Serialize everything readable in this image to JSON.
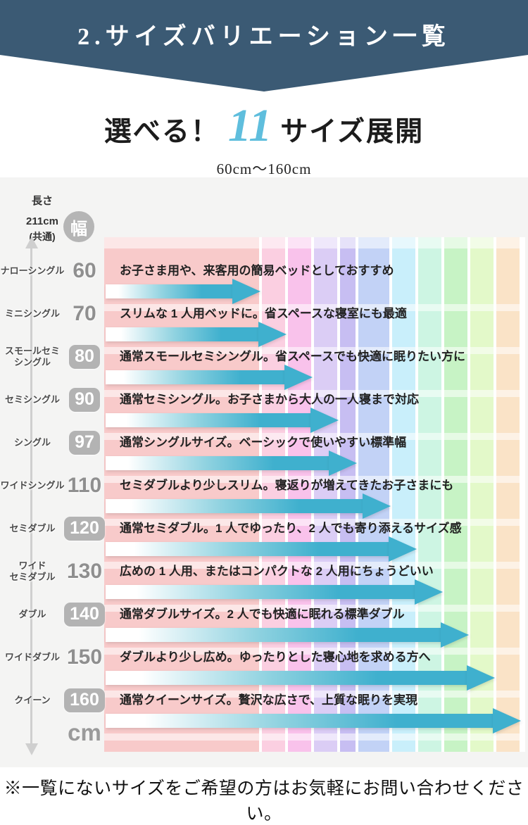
{
  "banner": {
    "title": "2.サイズバリエーション一覧"
  },
  "heading": {
    "prefix": "選べる！",
    "count": "11",
    "suffix": "サイズ展開",
    "range": "60cm〜160cm"
  },
  "axis": {
    "length_label": "長さ",
    "length_value": "211",
    "length_unit": "cm",
    "length_note": "(共通)",
    "width_label": "幅",
    "width_unit_label": "cm"
  },
  "footer": {
    "note": "※一覧にないサイズをご希望の方はお気軽にお問い合わせください。"
  },
  "colors": {
    "banner_bg": "#3b5a74",
    "count_accent": "#5fbedd",
    "arrow_teal": "#3fb0ce",
    "arrow_gradient_mid": "#8fd2e0",
    "badge_gray": "#b5b5b5",
    "section_bg": "#f4f4f3"
  },
  "chart_data": {
    "type": "bar",
    "orientation": "horizontal",
    "title": "サイズバリエーション一覧（幅 60cm〜160cm、長さ211cm共通）",
    "x_unit": "cm",
    "xlim": [
      0,
      160
    ],
    "length_common_cm": 211,
    "boundaries_cm": [
      0,
      60,
      70,
      80,
      90,
      97,
      110,
      120,
      130,
      140,
      150,
      160
    ],
    "band_colors": [
      "#f8caca",
      "#fbcfe1",
      "#f9c2eb",
      "#dbcdf5",
      "#c7bef2",
      "#c2d2f6",
      "#c9effb",
      "#cdf5e3",
      "#c7f3c5",
      "#e3f9c9",
      "#fae3c7"
    ],
    "rows": [
      {
        "name": "ナローシングル",
        "name_lines": [
          "ナローシングル"
        ],
        "width_cm": 60,
        "boxed": false,
        "desc": "お子さま用や、来客用の簡易ベッドとしておすすめ"
      },
      {
        "name": "ミニシングル",
        "name_lines": [
          "ミニシングル"
        ],
        "width_cm": 70,
        "boxed": false,
        "desc": "スリムな 1 人用ベッドに。省スペースな寝室にも最適"
      },
      {
        "name": "スモールセミシングル",
        "name_lines": [
          "スモールセミ",
          "シングル"
        ],
        "width_cm": 80,
        "boxed": true,
        "desc": "通常スモールセミシングル。省スペースでも快適に眠りたい方に"
      },
      {
        "name": "セミシングル",
        "name_lines": [
          "セミシングル"
        ],
        "width_cm": 90,
        "boxed": true,
        "desc": "通常セミシングル。お子さまから大人の一人寝まで対応"
      },
      {
        "name": "シングル",
        "name_lines": [
          "シングル"
        ],
        "width_cm": 97,
        "boxed": true,
        "desc": "通常シングルサイズ。ベーシックで使いやすい標準幅"
      },
      {
        "name": "ワイドシングル",
        "name_lines": [
          "ワイドシングル"
        ],
        "width_cm": 110,
        "boxed": false,
        "desc": "セミダブルより少しスリム。寝返りが増えてきたお子さまにも"
      },
      {
        "name": "セミダブル",
        "name_lines": [
          "セミダブル"
        ],
        "width_cm": 120,
        "boxed": true,
        "desc": "通常セミダブル。1 人でゆったり、2 人でも寄り添えるサイズ感"
      },
      {
        "name": "ワイドセミダブル",
        "name_lines": [
          "ワイド",
          "セミダブル"
        ],
        "width_cm": 130,
        "boxed": false,
        "desc": "広めの 1 人用、またはコンパクトな 2 人用にちょうどいい"
      },
      {
        "name": "ダブル",
        "name_lines": [
          "ダブル"
        ],
        "width_cm": 140,
        "boxed": true,
        "desc": "通常ダブルサイズ。2 人でも快適に眠れる標準ダブル"
      },
      {
        "name": "ワイドダブル",
        "name_lines": [
          "ワイドダブル"
        ],
        "width_cm": 150,
        "boxed": false,
        "desc": "ダブルより少し広め。ゆったりとした寝心地を求める方へ"
      },
      {
        "name": "クイーン",
        "name_lines": [
          "クイーン"
        ],
        "width_cm": 160,
        "boxed": true,
        "desc": "通常クイーンサイズ。贅沢な広さで、上質な眠りを実現"
      }
    ]
  }
}
